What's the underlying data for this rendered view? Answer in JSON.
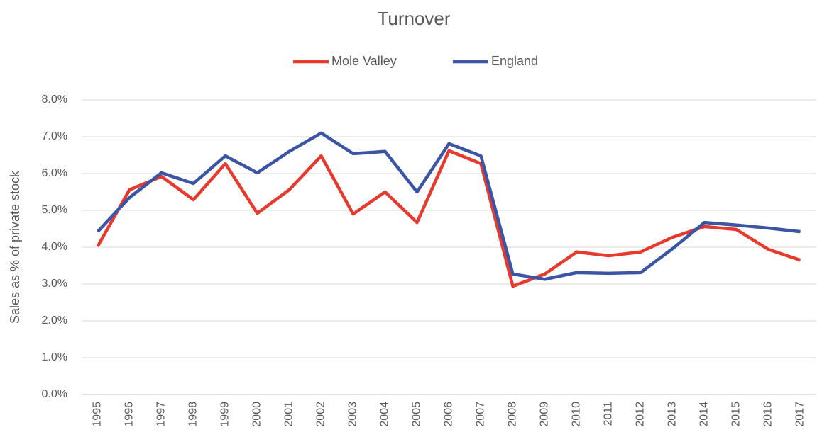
{
  "chart_data": {
    "type": "line",
    "title": "Turnover",
    "y_label": "Sales as % of private stock",
    "categories": [
      "1995",
      "1996",
      "1997",
      "1998",
      "1999",
      "2000",
      "2001",
      "2002",
      "2003",
      "2004",
      "2005",
      "2006",
      "2007",
      "2008",
      "2009",
      "2010",
      "2011",
      "2012",
      "2013",
      "2014",
      "2015",
      "2016",
      "2017"
    ],
    "series": [
      {
        "name": "Mole Valley",
        "color": "#e8392d",
        "values": [
          4.02,
          5.56,
          5.92,
          5.29,
          6.27,
          4.92,
          5.56,
          6.48,
          4.9,
          5.5,
          4.67,
          6.62,
          6.27,
          2.94,
          3.27,
          3.87,
          3.77,
          3.87,
          4.27,
          4.56,
          4.48,
          3.94,
          3.65
        ]
      },
      {
        "name": "England",
        "color": "#3b54a5",
        "values": [
          4.42,
          5.35,
          6.02,
          5.73,
          6.48,
          6.02,
          6.6,
          7.1,
          6.54,
          6.6,
          5.5,
          6.81,
          6.48,
          3.27,
          3.13,
          3.31,
          3.29,
          3.31,
          3.96,
          4.67,
          4.6,
          4.52,
          4.42
        ]
      }
    ],
    "ylim": [
      0,
      8
    ],
    "yticks": [
      {
        "value": 0,
        "label": "0.0%"
      },
      {
        "value": 1,
        "label": "1.0%"
      },
      {
        "value": 2,
        "label": "2.0%"
      },
      {
        "value": 3,
        "label": "3.0%"
      },
      {
        "value": 4,
        "label": "4.0%"
      },
      {
        "value": 5,
        "label": "5.0%"
      },
      {
        "value": 6,
        "label": "6.0%"
      },
      {
        "value": 7,
        "label": "7.0%"
      },
      {
        "value": 8,
        "label": "8.0%"
      }
    ],
    "grid": true,
    "legend": "top"
  }
}
